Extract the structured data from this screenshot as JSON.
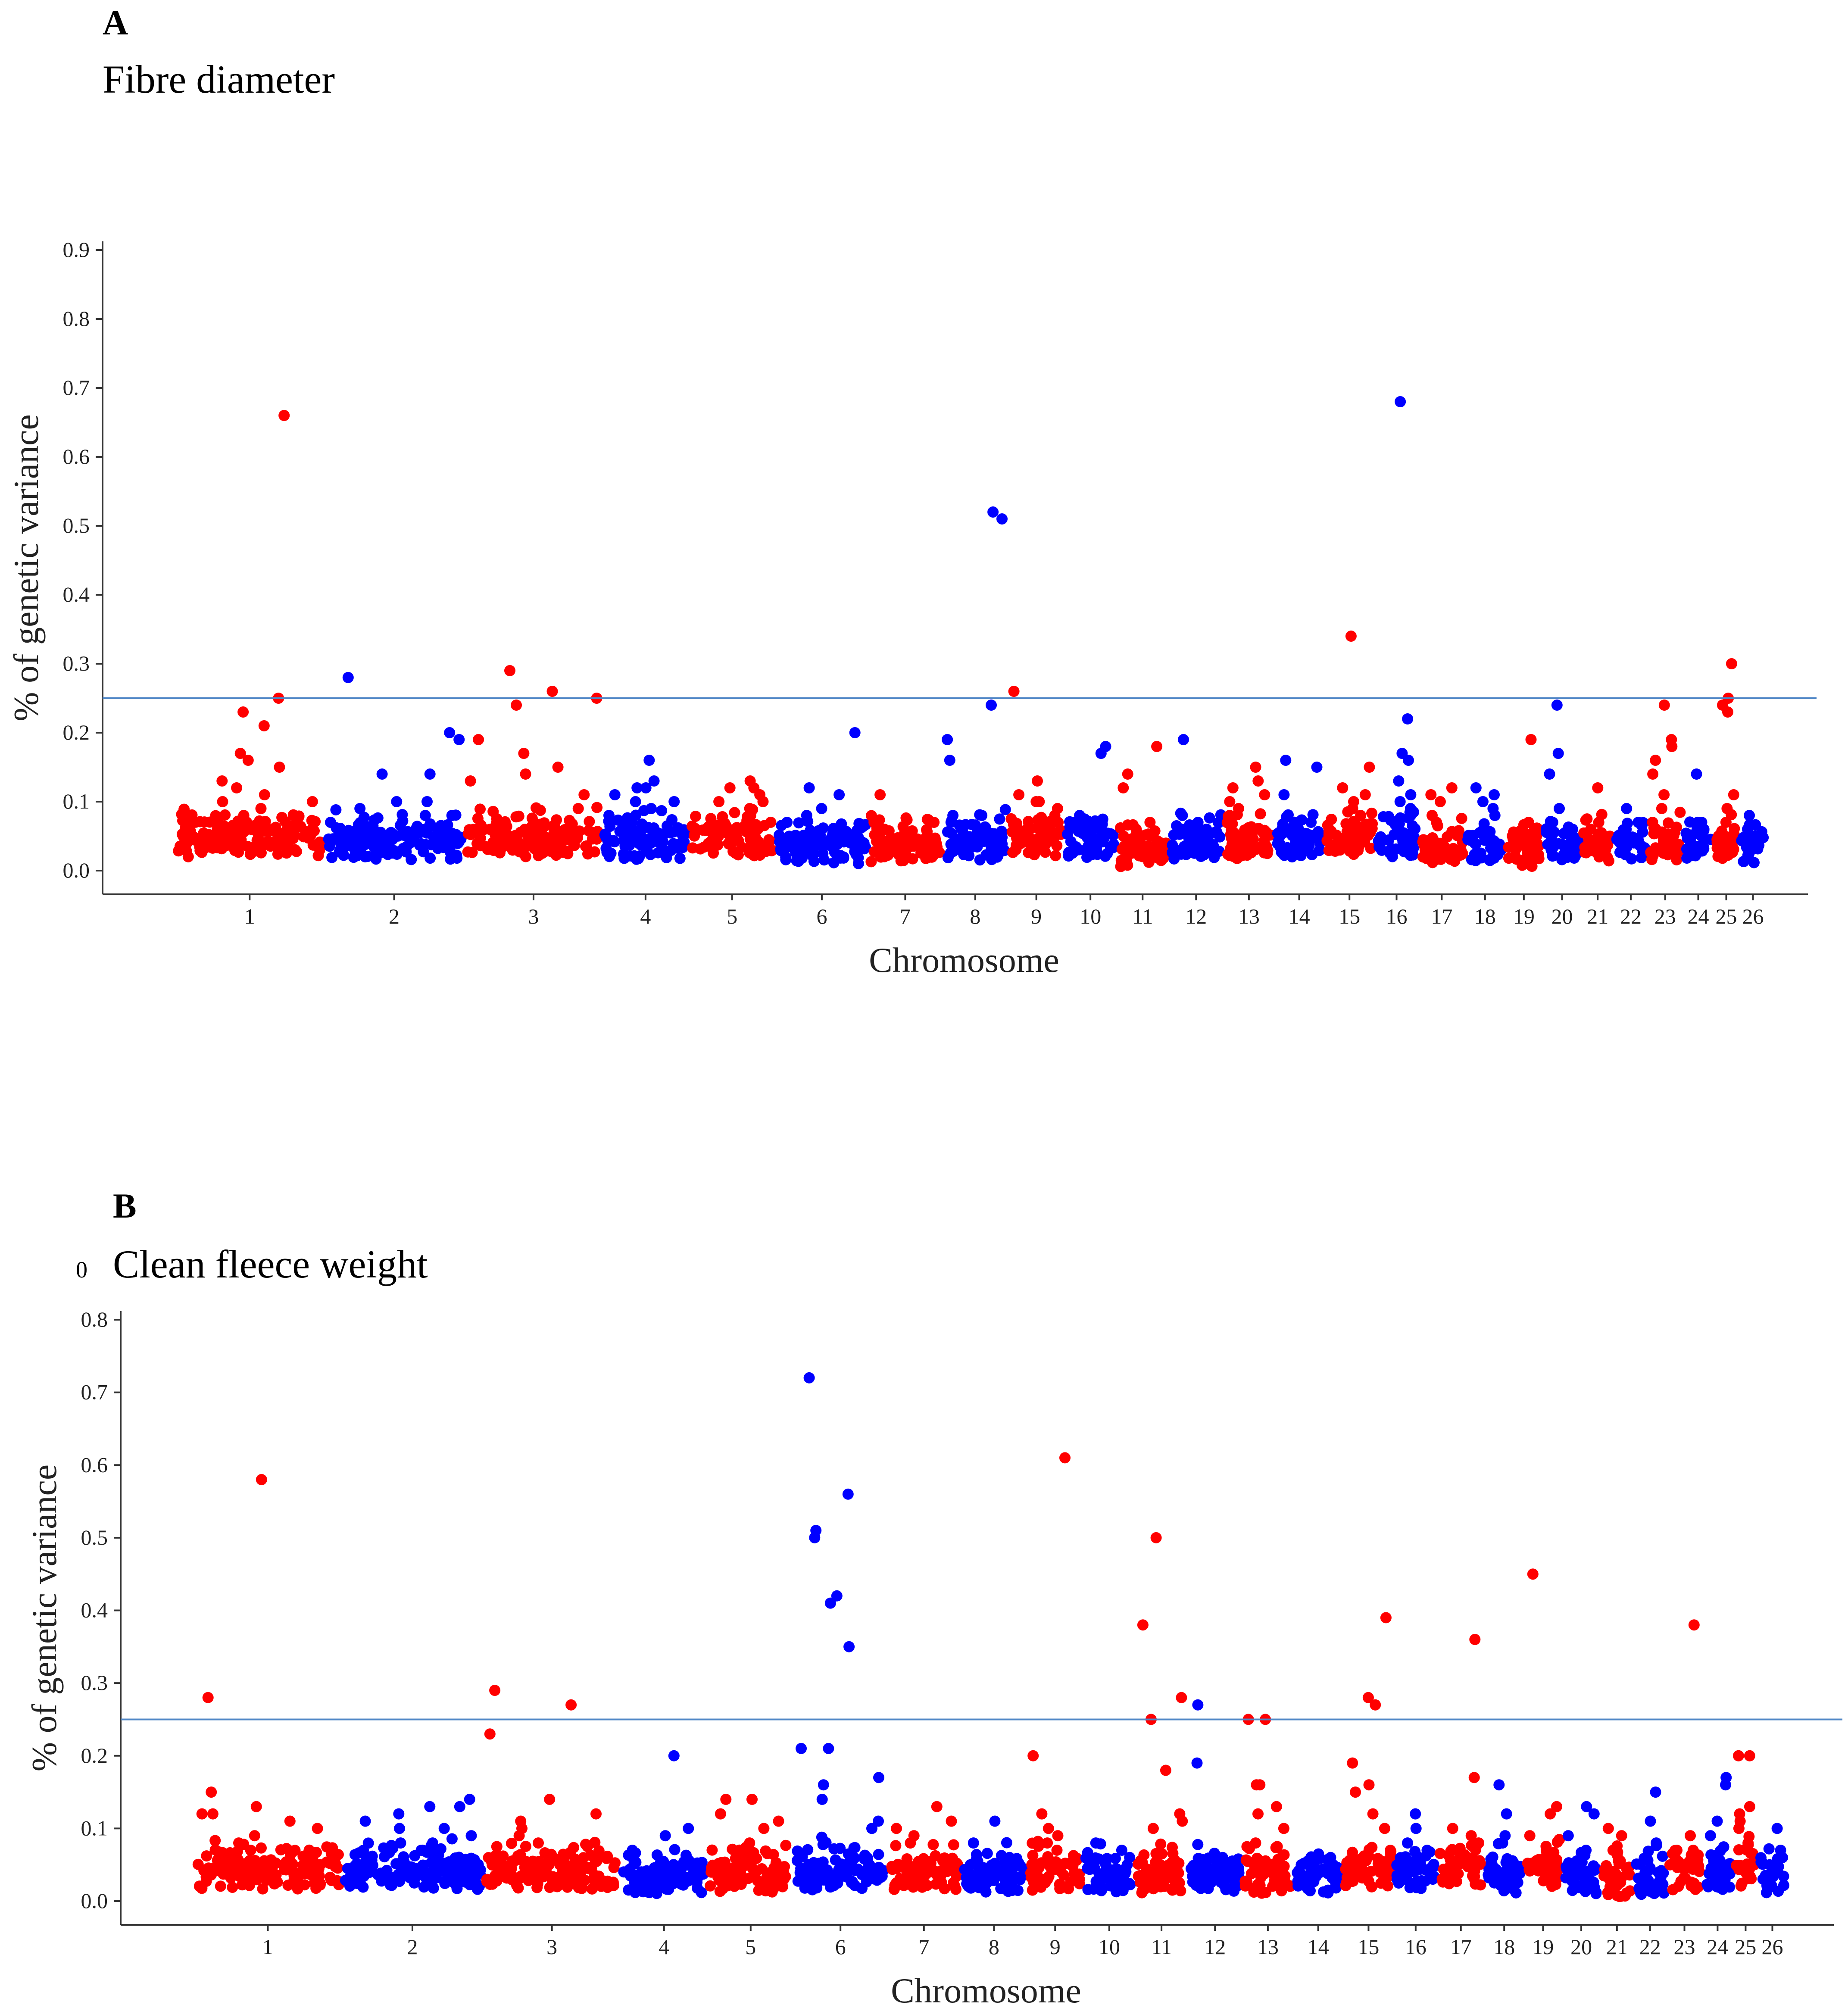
{
  "colors": {
    "odd": "#ff0000",
    "even": "#0000ff",
    "threshold": "#4f86c6"
  },
  "chart_data": [
    {
      "type": "scatter",
      "panel_letter": "A",
      "title": "Fibre diameter",
      "stray_label": "",
      "xlabel": "Chromosome",
      "ylabel": "% of genetic variance",
      "ylim": [
        0,
        0.9
      ],
      "yticks": [
        "0.0",
        "0.1",
        "0.2",
        "0.3",
        "0.4",
        "0.5",
        "0.6",
        "0.7",
        "0.8",
        "0.9"
      ],
      "threshold": 0.25,
      "chromosomes": [
        {
          "label": "1",
          "w": 116,
          "base": 0.04,
          "peaks": [
            0.66,
            0.25,
            0.23,
            0.21,
            0.17,
            0.16,
            0.15,
            0.13,
            0.12,
            0.11,
            0.1,
            0.1,
            0.09,
            0.08
          ]
        },
        {
          "label": "2",
          "w": 111,
          "base": 0.035,
          "peaks": [
            0.28,
            0.2,
            0.19,
            0.14,
            0.14,
            0.1,
            0.1,
            0.09,
            0.08,
            0.08,
            0.07
          ]
        },
        {
          "label": "3",
          "w": 108,
          "base": 0.04,
          "peaks": [
            0.29,
            0.26,
            0.25,
            0.24,
            0.19,
            0.17,
            0.15,
            0.14,
            0.13,
            0.11,
            0.09
          ]
        },
        {
          "label": "4",
          "w": 68,
          "base": 0.035,
          "peaks": [
            0.16,
            0.13,
            0.12,
            0.12,
            0.11,
            0.1,
            0.1,
            0.09,
            0.08
          ]
        },
        {
          "label": "5",
          "w": 68,
          "base": 0.04,
          "peaks": [
            0.13,
            0.12,
            0.12,
            0.11,
            0.1,
            0.1,
            0.09,
            0.08
          ]
        },
        {
          "label": "6",
          "w": 73,
          "base": 0.03,
          "peaks": [
            0.2,
            0.12,
            0.11,
            0.09,
            0.08,
            0.07
          ]
        },
        {
          "label": "7",
          "w": 58,
          "base": 0.03,
          "peaks": [
            0.11,
            0.07,
            0.07,
            0.06
          ]
        },
        {
          "label": "8",
          "w": 52,
          "base": 0.035,
          "peaks": [
            0.52,
            0.51,
            0.24,
            0.19,
            0.16,
            0.08,
            0.08,
            0.07
          ]
        },
        {
          "label": "9",
          "w": 44,
          "base": 0.04,
          "peaks": [
            0.26,
            0.13,
            0.11,
            0.1,
            0.1,
            0.09,
            0.08,
            0.07
          ]
        },
        {
          "label": "10",
          "w": 41,
          "base": 0.035,
          "peaks": [
            0.18,
            0.17,
            0.08,
            0.07,
            0.07,
            0.06
          ]
        },
        {
          "label": "11",
          "w": 41,
          "base": 0.025,
          "peaks": [
            0.18,
            0.14,
            0.12,
            0.07,
            0.06
          ]
        },
        {
          "label": "12",
          "w": 43,
          "base": 0.035,
          "peaks": [
            0.19,
            0.08,
            0.07,
            0.06,
            0.06
          ]
        },
        {
          "label": "13",
          "w": 40,
          "base": 0.035,
          "peaks": [
            0.15,
            0.13,
            0.12,
            0.11,
            0.1,
            0.09,
            0.08
          ]
        },
        {
          "label": "14",
          "w": 39,
          "base": 0.035,
          "peaks": [
            0.16,
            0.15,
            0.11,
            0.07,
            0.06
          ]
        },
        {
          "label": "15",
          "w": 40,
          "base": 0.04,
          "peaks": [
            0.34,
            0.15,
            0.12,
            0.11,
            0.1,
            0.09,
            0.08
          ]
        },
        {
          "label": "16",
          "w": 34,
          "base": 0.04,
          "peaks": [
            0.68,
            0.22,
            0.17,
            0.16,
            0.13,
            0.11,
            0.1,
            0.09,
            0.08
          ]
        },
        {
          "label": "17",
          "w": 37,
          "base": 0.03,
          "peaks": [
            0.12,
            0.11,
            0.1,
            0.08,
            0.07
          ]
        },
        {
          "label": "18",
          "w": 31,
          "base": 0.03,
          "peaks": [
            0.12,
            0.11,
            0.1,
            0.09,
            0.08
          ]
        },
        {
          "label": "19",
          "w": 30,
          "base": 0.025,
          "peaks": [
            0.19,
            0.07,
            0.06
          ]
        },
        {
          "label": "20",
          "w": 30,
          "base": 0.035,
          "peaks": [
            0.24,
            0.17,
            0.14,
            0.09,
            0.07,
            0.06
          ]
        },
        {
          "label": "21",
          "w": 26,
          "base": 0.03,
          "peaks": [
            0.12,
            0.07,
            0.06
          ]
        },
        {
          "label": "22",
          "w": 26,
          "base": 0.03,
          "peaks": [
            0.09,
            0.07,
            0.06
          ]
        },
        {
          "label": "23",
          "w": 28,
          "base": 0.035,
          "peaks": [
            0.24,
            0.19,
            0.18,
            0.16,
            0.14,
            0.11,
            0.09,
            0.07
          ]
        },
        {
          "label": "24",
          "w": 24,
          "base": 0.035,
          "peaks": [
            0.14,
            0.07,
            0.06
          ]
        },
        {
          "label": "25",
          "w": 20,
          "base": 0.035,
          "peaks": [
            0.3,
            0.25,
            0.24,
            0.23,
            0.11,
            0.09,
            0.07
          ]
        },
        {
          "label": "26",
          "w": 22,
          "base": 0.03,
          "peaks": [
            0.08,
            0.06,
            0.05
          ]
        }
      ]
    },
    {
      "type": "scatter",
      "panel_letter": "B",
      "title": "Clean fleece weight",
      "stray_label": "0",
      "xlabel": "Chromosome",
      "ylabel": "% of genetic variance",
      "ylim": [
        0,
        0.8
      ],
      "yticks": [
        "0.0",
        "0.1",
        "0.2",
        "0.3",
        "0.4",
        "0.5",
        "0.6",
        "0.7",
        "0.8"
      ],
      "threshold": 0.25,
      "chromosomes": [
        {
          "label": "1",
          "w": 116,
          "base": 0.035,
          "peaks": [
            0.58,
            0.28,
            0.15,
            0.13,
            0.12,
            0.12,
            0.11,
            0.1,
            0.09,
            0.08,
            0.07
          ]
        },
        {
          "label": "2",
          "w": 111,
          "base": 0.035,
          "peaks": [
            0.14,
            0.13,
            0.13,
            0.12,
            0.11,
            0.1,
            0.1,
            0.09,
            0.08,
            0.08,
            0.07
          ]
        },
        {
          "label": "3",
          "w": 108,
          "base": 0.035,
          "peaks": [
            0.29,
            0.27,
            0.23,
            0.14,
            0.12,
            0.11,
            0.1,
            0.09,
            0.08
          ]
        },
        {
          "label": "4",
          "w": 68,
          "base": 0.03,
          "peaks": [
            0.2,
            0.1,
            0.09,
            0.07
          ]
        },
        {
          "label": "5",
          "w": 68,
          "base": 0.03,
          "peaks": [
            0.14,
            0.14,
            0.12,
            0.11,
            0.1,
            0.08
          ]
        },
        {
          "label": "6",
          "w": 73,
          "base": 0.035,
          "peaks": [
            0.72,
            0.56,
            0.51,
            0.5,
            0.42,
            0.41,
            0.35,
            0.21,
            0.21,
            0.17,
            0.16,
            0.14,
            0.11,
            0.1
          ]
        },
        {
          "label": "7",
          "w": 58,
          "base": 0.035,
          "peaks": [
            0.13,
            0.11,
            0.1,
            0.09,
            0.08
          ]
        },
        {
          "label": "8",
          "w": 52,
          "base": 0.03,
          "peaks": [
            0.11,
            0.06,
            0.05
          ]
        },
        {
          "label": "9",
          "w": 44,
          "base": 0.035,
          "peaks": [
            0.61,
            0.2,
            0.12,
            0.1,
            0.09,
            0.08
          ]
        },
        {
          "label": "10",
          "w": 41,
          "base": 0.03,
          "peaks": [
            0.08,
            0.07,
            0.06
          ]
        },
        {
          "label": "11",
          "w": 41,
          "base": 0.03,
          "peaks": [
            0.5,
            0.38,
            0.28,
            0.25,
            0.18,
            0.12,
            0.11,
            0.1
          ]
        },
        {
          "label": "12",
          "w": 43,
          "base": 0.03,
          "peaks": [
            0.27,
            0.19,
            0.06,
            0.05
          ]
        },
        {
          "label": "13",
          "w": 40,
          "base": 0.03,
          "peaks": [
            0.25,
            0.25,
            0.16,
            0.16,
            0.13,
            0.12,
            0.1,
            0.08
          ]
        },
        {
          "label": "14",
          "w": 39,
          "base": 0.03,
          "peaks": [
            0.06,
            0.05,
            0.05
          ]
        },
        {
          "label": "15",
          "w": 40,
          "base": 0.035,
          "peaks": [
            0.39,
            0.28,
            0.27,
            0.19,
            0.16,
            0.15,
            0.12,
            0.1
          ]
        },
        {
          "label": "16",
          "w": 34,
          "base": 0.035,
          "peaks": [
            0.12,
            0.1,
            0.08,
            0.07
          ]
        },
        {
          "label": "17",
          "w": 37,
          "base": 0.04,
          "peaks": [
            0.36,
            0.17,
            0.1,
            0.09,
            0.08
          ]
        },
        {
          "label": "18",
          "w": 31,
          "base": 0.03,
          "peaks": [
            0.16,
            0.12,
            0.09,
            0.08
          ]
        },
        {
          "label": "19",
          "w": 30,
          "base": 0.035,
          "peaks": [
            0.45,
            0.13,
            0.12,
            0.09
          ]
        },
        {
          "label": "20",
          "w": 30,
          "base": 0.03,
          "peaks": [
            0.13,
            0.12,
            0.09,
            0.07
          ]
        },
        {
          "label": "21",
          "w": 26,
          "base": 0.025,
          "peaks": [
            0.1,
            0.09,
            0.07
          ]
        },
        {
          "label": "22",
          "w": 26,
          "base": 0.025,
          "peaks": [
            0.15,
            0.11,
            0.08
          ]
        },
        {
          "label": "23",
          "w": 28,
          "base": 0.035,
          "peaks": [
            0.38,
            0.09,
            0.07
          ]
        },
        {
          "label": "24",
          "w": 24,
          "base": 0.035,
          "peaks": [
            0.17,
            0.16,
            0.11,
            0.09
          ]
        },
        {
          "label": "25",
          "w": 20,
          "base": 0.04,
          "peaks": [
            0.2,
            0.2,
            0.13,
            0.12,
            0.11,
            0.1,
            0.08
          ]
        },
        {
          "label": "26",
          "w": 22,
          "base": 0.03,
          "peaks": [
            0.1,
            0.07,
            0.05
          ]
        }
      ]
    }
  ]
}
